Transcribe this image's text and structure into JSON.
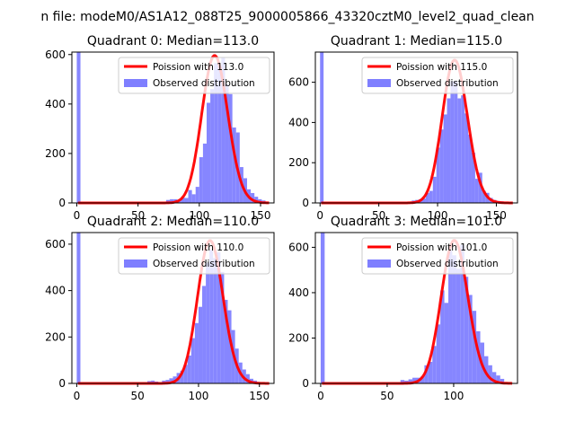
{
  "figure": {
    "suptitle": "n file: modeM0/AS1A12_088T25_9000005866_43320cztM0_level2_quad_clean",
    "colors": {
      "histogram": "#7f7fff",
      "fit": "#ff0000",
      "axes": "#000000",
      "background": "#ffffff"
    }
  },
  "chart_data": [
    {
      "type": "bar",
      "title": "Quadrant 0: Median=113.0",
      "xlim": [
        -4,
        161
      ],
      "ylim": [
        0,
        610
      ],
      "xticks": [
        0,
        50,
        100,
        150
      ],
      "yticks": [
        0,
        200,
        400,
        600
      ],
      "grid": false,
      "legend_position": "top-right",
      "series": [
        {
          "name": "Poission with 113.0",
          "kind": "line",
          "lambda": 113.0,
          "peak": 596
        },
        {
          "name": "Observed distribution",
          "kind": "histogram",
          "bin_width": 3,
          "bins": [
            [
              0,
              615
            ],
            [
              73,
              12
            ],
            [
              76,
              15
            ],
            [
              79,
              15
            ],
            [
              82,
              10
            ],
            [
              85,
              22
            ],
            [
              88,
              20
            ],
            [
              91,
              52
            ],
            [
              94,
              35
            ],
            [
              97,
              65
            ],
            [
              100,
              185
            ],
            [
              103,
              240
            ],
            [
              106,
              405
            ],
            [
              109,
              460
            ],
            [
              112,
              565
            ],
            [
              115,
              555
            ],
            [
              118,
              590
            ],
            [
              121,
              480
            ],
            [
              124,
              440
            ],
            [
              127,
              305
            ],
            [
              130,
              285
            ],
            [
              133,
              145
            ],
            [
              136,
              100
            ],
            [
              139,
              55
            ],
            [
              142,
              40
            ],
            [
              145,
              25
            ],
            [
              148,
              15
            ],
            [
              151,
              10
            ]
          ]
        }
      ]
    },
    {
      "type": "bar",
      "title": "Quadrant 1: Median=115.0",
      "xlim": [
        -4,
        168
      ],
      "ylim": [
        0,
        750
      ],
      "xticks": [
        0,
        50,
        100,
        150
      ],
      "yticks": [
        0,
        200,
        400,
        600
      ],
      "grid": false,
      "legend_position": "top-right",
      "series": [
        {
          "name": "Poission with 115.0",
          "kind": "line",
          "lambda": 115.0,
          "peak": 710
        },
        {
          "name": "Observed distribution",
          "kind": "histogram",
          "bin_width": 3,
          "bins": [
            [
              0,
              755
            ],
            [
              78,
              12
            ],
            [
              81,
              15
            ],
            [
              84,
              18
            ],
            [
              87,
              22
            ],
            [
              90,
              50
            ],
            [
              93,
              60
            ],
            [
              96,
              130
            ],
            [
              99,
              275
            ],
            [
              102,
              365
            ],
            [
              105,
              440
            ],
            [
              108,
              520
            ],
            [
              111,
              605
            ],
            [
              114,
              605
            ],
            [
              117,
              520
            ],
            [
              120,
              535
            ],
            [
              123,
              445
            ],
            [
              126,
              340
            ],
            [
              129,
              250
            ],
            [
              132,
              120
            ],
            [
              135,
              150
            ],
            [
              138,
              60
            ],
            [
              141,
              50
            ],
            [
              144,
              25
            ],
            [
              147,
              15
            ],
            [
              150,
              10
            ],
            [
              153,
              8
            ]
          ]
        }
      ]
    },
    {
      "type": "bar",
      "title": "Quadrant 2: Median=110.0",
      "xlim": [
        -4,
        162
      ],
      "ylim": [
        0,
        650
      ],
      "xticks": [
        0,
        50,
        100,
        150
      ],
      "yticks": [
        0,
        200,
        400,
        600
      ],
      "grid": false,
      "legend_position": "top-right",
      "series": [
        {
          "name": "Poission with 110.0",
          "kind": "line",
          "lambda": 110.0,
          "peak": 615
        },
        {
          "name": "Observed distribution",
          "kind": "histogram",
          "bin_width": 3,
          "bins": [
            [
              0,
              655
            ],
            [
              58,
              10
            ],
            [
              61,
              12
            ],
            [
              64,
              8
            ],
            [
              70,
              12
            ],
            [
              73,
              15
            ],
            [
              76,
              22
            ],
            [
              79,
              30
            ],
            [
              82,
              45
            ],
            [
              85,
              55
            ],
            [
              88,
              80
            ],
            [
              91,
              120
            ],
            [
              94,
              195
            ],
            [
              97,
              260
            ],
            [
              100,
              330
            ],
            [
              103,
              420
            ],
            [
              106,
              520
            ],
            [
              109,
              575
            ],
            [
              112,
              540
            ],
            [
              115,
              565
            ],
            [
              118,
              480
            ],
            [
              121,
              360
            ],
            [
              124,
              315
            ],
            [
              127,
              230
            ],
            [
              130,
              150
            ],
            [
              133,
              90
            ],
            [
              136,
              60
            ],
            [
              139,
              40
            ],
            [
              142,
              20
            ],
            [
              145,
              12
            ]
          ]
        }
      ]
    },
    {
      "type": "bar",
      "title": "Quadrant 3: Median=101.0",
      "xlim": [
        -4,
        148
      ],
      "ylim": [
        0,
        665
      ],
      "xticks": [
        0,
        50,
        100
      ],
      "yticks": [
        0,
        200,
        400,
        600
      ],
      "grid": false,
      "legend_position": "top-right",
      "series": [
        {
          "name": "Poission with 101.0",
          "kind": "line",
          "lambda": 101.0,
          "peak": 630
        },
        {
          "name": "Observed distribution",
          "kind": "histogram",
          "bin_width": 3,
          "bins": [
            [
              0,
              665
            ],
            [
              60,
              15
            ],
            [
              63,
              12
            ],
            [
              66,
              18
            ],
            [
              69,
              25
            ],
            [
              72,
              25
            ],
            [
              75,
              30
            ],
            [
              78,
              80
            ],
            [
              81,
              95
            ],
            [
              84,
              165
            ],
            [
              87,
              260
            ],
            [
              90,
              410
            ],
            [
              93,
              355
            ],
            [
              96,
              585
            ],
            [
              99,
              565
            ],
            [
              102,
              505
            ],
            [
              105,
              610
            ],
            [
              108,
              470
            ],
            [
              111,
              390
            ],
            [
              114,
              320
            ],
            [
              117,
              230
            ],
            [
              120,
              180
            ],
            [
              123,
              120
            ],
            [
              126,
              80
            ],
            [
              129,
              50
            ],
            [
              132,
              35
            ],
            [
              135,
              20
            ]
          ]
        }
      ]
    }
  ]
}
